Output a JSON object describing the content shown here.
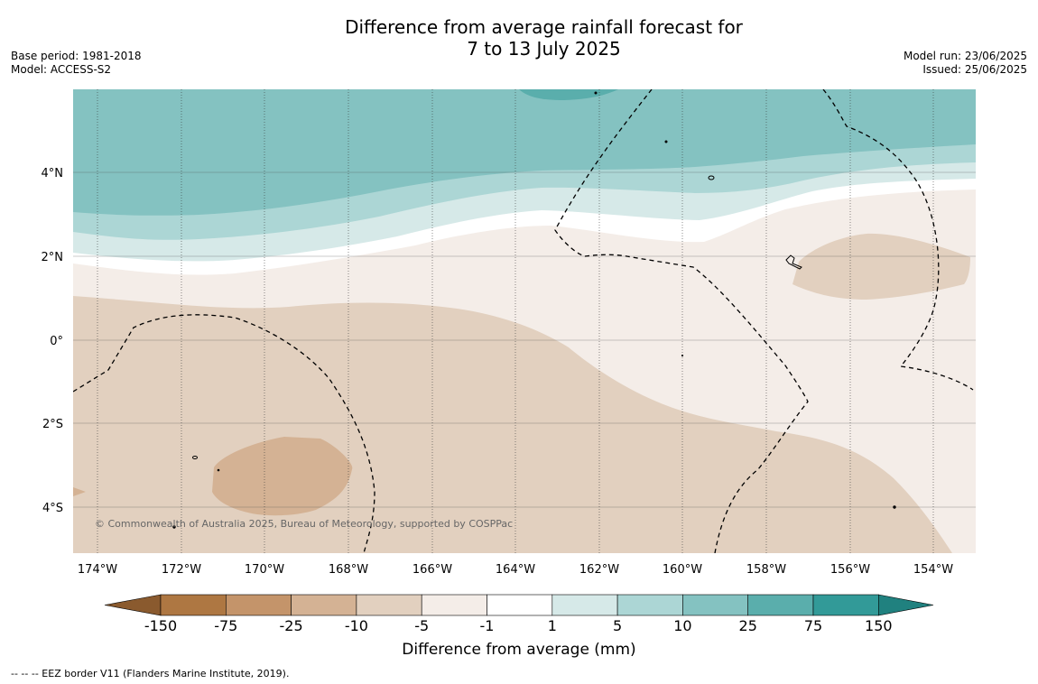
{
  "title": {
    "line1": "Difference from average rainfall forecast for",
    "line2": "7 to 13 July 2025"
  },
  "meta_left": {
    "base_period": "Base period: 1981-2018",
    "model": "Model: ACCESS-S2"
  },
  "meta_right": {
    "model_run": "Model run: 23/06/2025",
    "issued": "Issued: 25/06/2025"
  },
  "map": {
    "lon_labels": [
      "174°W",
      "172°W",
      "170°W",
      "168°W",
      "166°W",
      "164°W",
      "162°W",
      "160°W",
      "158°W",
      "156°W",
      "154°W"
    ],
    "lat_labels": [
      "4°N",
      "2°N",
      "0°",
      "2°S",
      "4°S"
    ],
    "copyright": "© Commonwealth of Australia 2025, Bureau of Meteorology, supported by COSPPac"
  },
  "colorbar": {
    "ticks": [
      "-150",
      "-75",
      "-25",
      "-10",
      "-5",
      "-1",
      "1",
      "5",
      "10",
      "25",
      "75",
      "150"
    ],
    "colors": [
      "#8a5a2e",
      "#ae7742",
      "#c4946a",
      "#d4b294",
      "#e2d0bf",
      "#f4ede8",
      "#ffffff",
      "#d6e9e8",
      "#acd6d5",
      "#84c2c1",
      "#5aaeac",
      "#329a98",
      "#20817f"
    ],
    "label": "Difference from average (mm)"
  },
  "footer": "--  --  -- EEZ border V11 (Flanders Marine Institute, 2019)."
}
